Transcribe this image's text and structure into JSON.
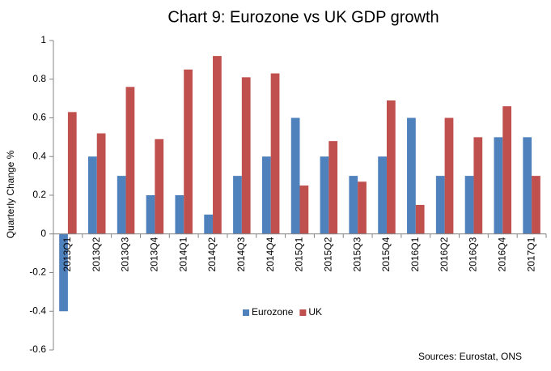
{
  "chart_data": {
    "type": "bar",
    "title": "Chart 9: Eurozone vs UK GDP growth",
    "y_label": "Quarterly Change %",
    "source": "Sources: Eurostat, ONS",
    "categories": [
      "2013Q1",
      "2013Q2",
      "2013Q3",
      "2013Q4",
      "2014Q1",
      "2014Q2",
      "2014Q3",
      "2014Q4",
      "2015Q1",
      "2015Q2",
      "2015Q3",
      "2015Q4",
      "2016Q1",
      "2016Q2",
      "2016Q3",
      "2016Q4",
      "2017Q1"
    ],
    "series": [
      {
        "name": "Eurozone",
        "color": "#4f81bd",
        "values": [
          -0.4,
          0.4,
          0.3,
          0.2,
          0.2,
          0.1,
          0.3,
          0.4,
          0.6,
          0.4,
          0.3,
          0.4,
          0.6,
          0.3,
          0.3,
          0.5,
          0.5
        ]
      },
      {
        "name": "UK",
        "color": "#c0504d",
        "values": [
          0.63,
          0.52,
          0.76,
          0.49,
          0.85,
          0.92,
          0.81,
          0.83,
          0.25,
          0.48,
          0.27,
          0.69,
          0.15,
          0.6,
          0.5,
          0.66,
          0.3
        ]
      }
    ],
    "ylim": [
      -0.6,
      1
    ],
    "yticks": [
      -0.6,
      -0.4,
      -0.2,
      0,
      0.2,
      0.4,
      0.6,
      0.8,
      1
    ],
    "grid": false,
    "legend": "bottom"
  }
}
